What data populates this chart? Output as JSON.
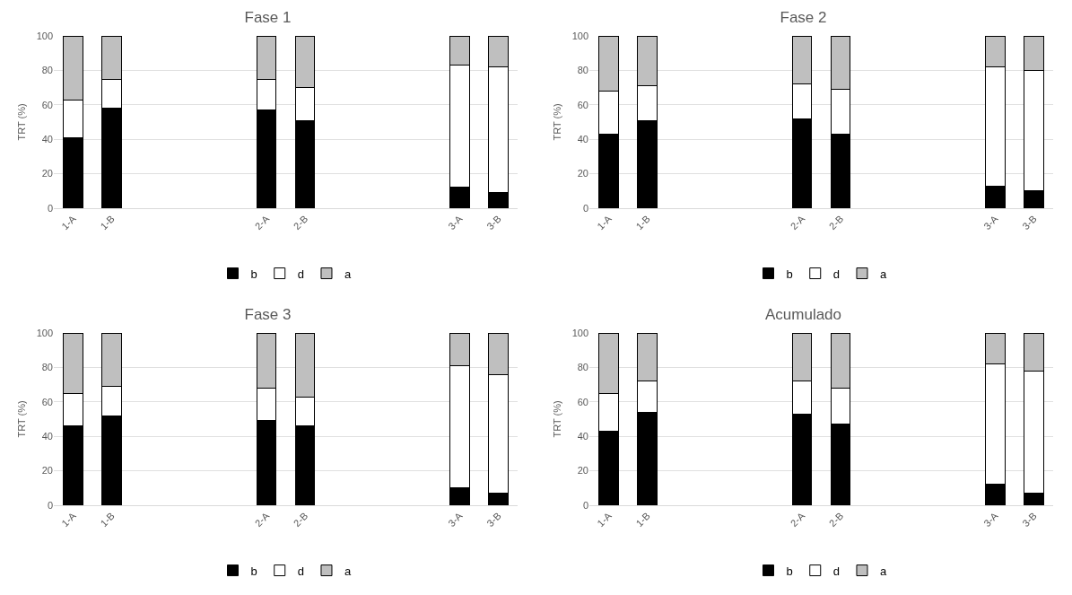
{
  "chart_data": [
    {
      "type": "bar",
      "title": "Fase 1",
      "ylabel": "TRT (%)",
      "stacked": true,
      "categories": [
        "1-A",
        "1-B",
        null,
        null,
        null,
        "2-A",
        "2-B",
        null,
        null,
        null,
        "3-A",
        "3-B"
      ],
      "series": [
        {
          "name": "b",
          "color": "#000000",
          "values": [
            41,
            58,
            null,
            null,
            null,
            57,
            51,
            null,
            null,
            null,
            12,
            9
          ]
        },
        {
          "name": "d",
          "color": "#ffffff",
          "values": [
            22,
            17,
            null,
            null,
            null,
            18,
            19,
            null,
            null,
            null,
            71,
            73
          ]
        },
        {
          "name": "a",
          "color": "#bfbfbf",
          "values": [
            37,
            25,
            null,
            null,
            null,
            25,
            30,
            null,
            null,
            null,
            17,
            18
          ]
        }
      ],
      "ylim": [
        0,
        100
      ],
      "yticks": [
        0,
        20,
        40,
        60,
        80,
        100
      ],
      "grid": "y",
      "legend": "bottom"
    },
    {
      "type": "bar",
      "title": "Fase 2",
      "ylabel": "TRT (%)",
      "stacked": true,
      "categories": [
        "1-A",
        "1-B",
        null,
        null,
        null,
        "2-A",
        "2-B",
        null,
        null,
        null,
        "3-A",
        "3-B"
      ],
      "series": [
        {
          "name": "b",
          "color": "#000000",
          "values": [
            43,
            51,
            null,
            null,
            null,
            52,
            43,
            null,
            null,
            null,
            13,
            10
          ]
        },
        {
          "name": "d",
          "color": "#ffffff",
          "values": [
            25,
            20,
            null,
            null,
            null,
            20,
            26,
            null,
            null,
            null,
            69,
            70
          ]
        },
        {
          "name": "a",
          "color": "#bfbfbf",
          "values": [
            32,
            29,
            null,
            null,
            null,
            28,
            31,
            null,
            null,
            null,
            18,
            20
          ]
        }
      ],
      "ylim": [
        0,
        100
      ],
      "yticks": [
        0,
        20,
        40,
        60,
        80,
        100
      ],
      "grid": "y",
      "legend": "bottom"
    },
    {
      "type": "bar",
      "title": "Fase 3",
      "ylabel": "TRT (%)",
      "stacked": true,
      "categories": [
        "1-A",
        "1-B",
        null,
        null,
        null,
        "2-A",
        "2-B",
        null,
        null,
        null,
        "3-A",
        "3-B"
      ],
      "series": [
        {
          "name": "b",
          "color": "#000000",
          "values": [
            46,
            52,
            null,
            null,
            null,
            49,
            46,
            null,
            null,
            null,
            10,
            7
          ]
        },
        {
          "name": "d",
          "color": "#ffffff",
          "values": [
            19,
            17,
            null,
            null,
            null,
            19,
            17,
            null,
            null,
            null,
            71,
            69
          ]
        },
        {
          "name": "a",
          "color": "#bfbfbf",
          "values": [
            35,
            31,
            null,
            null,
            null,
            32,
            37,
            null,
            null,
            null,
            19,
            24
          ]
        }
      ],
      "ylim": [
        0,
        100
      ],
      "yticks": [
        0,
        20,
        40,
        60,
        80,
        100
      ],
      "grid": "y",
      "legend": "bottom"
    },
    {
      "type": "bar",
      "title": "Acumulado",
      "ylabel": "TRT (%)",
      "stacked": true,
      "categories": [
        "1-A",
        "1-B",
        null,
        null,
        null,
        "2-A",
        "2-B",
        null,
        null,
        null,
        "3-A",
        "3-B"
      ],
      "series": [
        {
          "name": "b",
          "color": "#000000",
          "values": [
            43,
            54,
            null,
            null,
            null,
            53,
            47,
            null,
            null,
            null,
            12,
            7
          ]
        },
        {
          "name": "d",
          "color": "#ffffff",
          "values": [
            22,
            18,
            null,
            null,
            null,
            19,
            21,
            null,
            null,
            null,
            70,
            71
          ]
        },
        {
          "name": "a",
          "color": "#bfbfbf",
          "values": [
            35,
            28,
            null,
            null,
            null,
            28,
            32,
            null,
            null,
            null,
            18,
            22
          ]
        }
      ],
      "ylim": [
        0,
        100
      ],
      "yticks": [
        0,
        20,
        40,
        60,
        80,
        100
      ],
      "grid": "y",
      "legend": "bottom"
    }
  ]
}
